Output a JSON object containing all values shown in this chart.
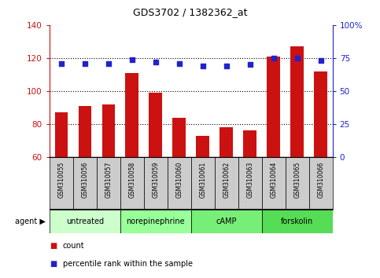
{
  "title": "GDS3702 / 1382362_at",
  "samples": [
    "GSM310055",
    "GSM310056",
    "GSM310057",
    "GSM310058",
    "GSM310059",
    "GSM310060",
    "GSM310061",
    "GSM310062",
    "GSM310063",
    "GSM310064",
    "GSM310065",
    "GSM310066"
  ],
  "counts": [
    87,
    91,
    92,
    111,
    99,
    84,
    73,
    78,
    76,
    121,
    127,
    112
  ],
  "percentiles": [
    71,
    71,
    71,
    74,
    72,
    71,
    69,
    69,
    70,
    75,
    75,
    73
  ],
  "groups": [
    {
      "label": "untreated",
      "start": 0,
      "end": 3,
      "color": "#ccffcc"
    },
    {
      "label": "norepinephrine",
      "start": 3,
      "end": 6,
      "color": "#99ff99"
    },
    {
      "label": "cAMP",
      "start": 6,
      "end": 9,
      "color": "#77ee77"
    },
    {
      "label": "forskolin",
      "start": 9,
      "end": 12,
      "color": "#55dd55"
    }
  ],
  "ylim_left": [
    60,
    140
  ],
  "ylim_right": [
    0,
    100
  ],
  "yticks_left": [
    60,
    80,
    100,
    120,
    140
  ],
  "yticks_right": [
    0,
    25,
    50,
    75,
    100
  ],
  "ytick_labels_right": [
    "0",
    "25",
    "50",
    "75",
    "100%"
  ],
  "bar_color": "#cc1111",
  "dot_color": "#2222cc",
  "tick_label_bg": "#cccccc",
  "legend_count": "count",
  "legend_percentile": "percentile rank within the sample",
  "grid_yticks": [
    80,
    100,
    120
  ]
}
